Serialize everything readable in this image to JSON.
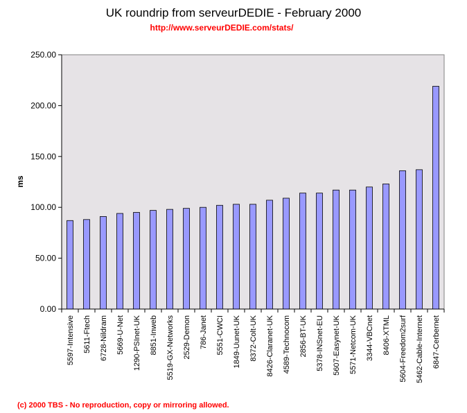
{
  "header": {
    "title": "UK roundrip from serveurDEDIE - February 2000",
    "subtitle": "http://www.serveurDEDIE.com/stats/"
  },
  "footer": {
    "copyright": "(c) 2000 TBS - No reproduction, copy or mirroring allowed."
  },
  "colors": {
    "bar_fill": "#9999ff",
    "plot_background": "#e6e3e6",
    "subtitle": "#ff0000",
    "footer": "#ff0000"
  },
  "chart_data": {
    "type": "bar",
    "title": "UK roundrip from serveurDEDIE - February 2000",
    "subtitle": "http://www.serveurDEDIE.com/stats/",
    "xlabel": "",
    "ylabel": "ms",
    "ylim": [
      0,
      250
    ],
    "yticks": [
      "0.00",
      "50.00",
      "100.00",
      "150.00",
      "200.00",
      "250.00"
    ],
    "grid": false,
    "categories": [
      "5597-Intensive",
      "5611-Ftech",
      "6728-Nildram",
      "5669-U-Net",
      "1290-PSInet-UK",
      "8851-Inweb",
      "5519-GX-Networks",
      "2529-Demon",
      "786-Janet",
      "5551-CWCI",
      "1849-Uunet-UK",
      "8372-Colt-UK",
      "8426-Claranet-UK",
      "4589-Technocom",
      "2856-BT-UK",
      "5378-INSnet-EU",
      "5607-Easynet-UK",
      "5571-Netcom-UK",
      "3344-VBCnet",
      "8406-XTML",
      "5604-Freedom2surf",
      "5462-Cable-Internet",
      "6847-Cerbernet"
    ],
    "values": [
      87,
      88,
      91,
      94,
      95,
      97,
      98,
      99,
      100,
      102,
      103,
      103,
      107,
      109,
      114,
      114,
      117,
      117,
      120,
      123,
      136,
      137,
      219
    ]
  }
}
